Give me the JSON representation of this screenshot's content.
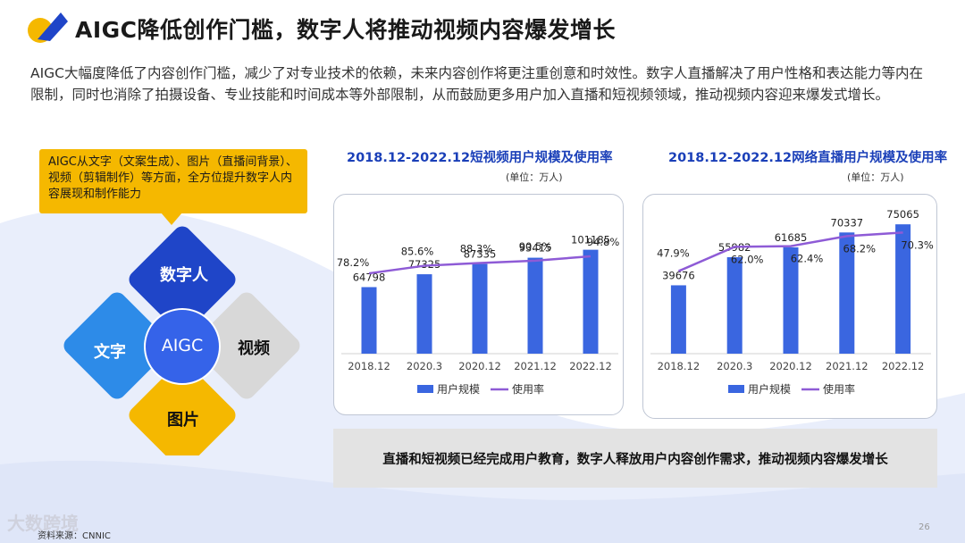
{
  "header": {
    "title": "AIGC降低创作门槛，数字人将推动视频内容爆发增长",
    "intro": "AIGC大幅度降低了内容创作门槛，减少了对专业技术的依赖，未来内容创作将更注重创意和时效性。数字人直播解决了用户性格和表达能力等内在限制，同时也消除了拍摄设备、专业技能和时间成本等外部限制，从而鼓励更多用户加入直播和短视频领域，推动视频内容迎来爆发式增长。"
  },
  "callout": {
    "text": "AIGC从文字（文案生成）、图片（直播间背景）、视频（剪辑制作）等方面，全方位提升数字人内容展现和制作能力"
  },
  "diamonds": {
    "top": "数字人",
    "left": "文字",
    "right": "视频",
    "bottom": "图片",
    "center": "AIGC",
    "colors": {
      "top": "#1f45c8",
      "left": "#2d8be8",
      "right": "#d8d8d8",
      "bottom": "#f5b800",
      "center": "#3563e9"
    }
  },
  "chart_data": [
    {
      "type": "bar",
      "title": "2018.12-2022.12短视频用户规模及使用率",
      "unit": "(单位：万人)",
      "categories": [
        "2018.12",
        "2020.3",
        "2020.12",
        "2021.12",
        "2022.12"
      ],
      "series": [
        {
          "name": "用户规模",
          "type": "bar",
          "values": [
            64798,
            77325,
            87335,
            93415,
            101185
          ],
          "labels": [
            "64798",
            "77325",
            "87335",
            "93415",
            "101185"
          ],
          "color": "#3a66e0"
        },
        {
          "name": "使用率",
          "type": "line",
          "values": [
            78.2,
            85.6,
            88.3,
            90.5,
            94.8
          ],
          "labels": [
            "78.2%",
            "85.6%",
            "88.3%",
            "90.5%",
            "94.8%"
          ],
          "color": "#8e5bd6"
        }
      ],
      "ylim": [
        0,
        120000
      ],
      "line_ylim": [
        0,
        120
      ],
      "legend": "bottom"
    },
    {
      "type": "bar",
      "title": "2018.12-2022.12网络直播用户规模及使用率",
      "unit": "(单位：万人)",
      "categories": [
        "2018.12",
        "2020.3",
        "2020.12",
        "2021.12",
        "2022.12"
      ],
      "series": [
        {
          "name": "用户规模",
          "type": "bar",
          "values": [
            39676,
            55982,
            61685,
            70337,
            75065
          ],
          "labels": [
            "39676",
            "55982",
            "61685",
            "70337",
            "75065"
          ],
          "color": "#3a66e0"
        },
        {
          "name": "使用率",
          "type": "line",
          "values": [
            47.9,
            62.0,
            62.4,
            68.2,
            70.3
          ],
          "labels": [
            "47.9%",
            "62.0%",
            "62.4%",
            "68.2%",
            "70.3%"
          ],
          "color": "#8e5bd6"
        }
      ],
      "ylim": [
        0,
        85000
      ],
      "line_ylim": [
        0,
        85
      ],
      "legend": "bottom"
    }
  ],
  "summary": "直播和短视频已经完成用户教育，数字人释放用户内容创作需求，推动视频内容爆发增长",
  "source": "资料来源：CNNIC",
  "watermark": "大数跨境",
  "page_number": "26"
}
